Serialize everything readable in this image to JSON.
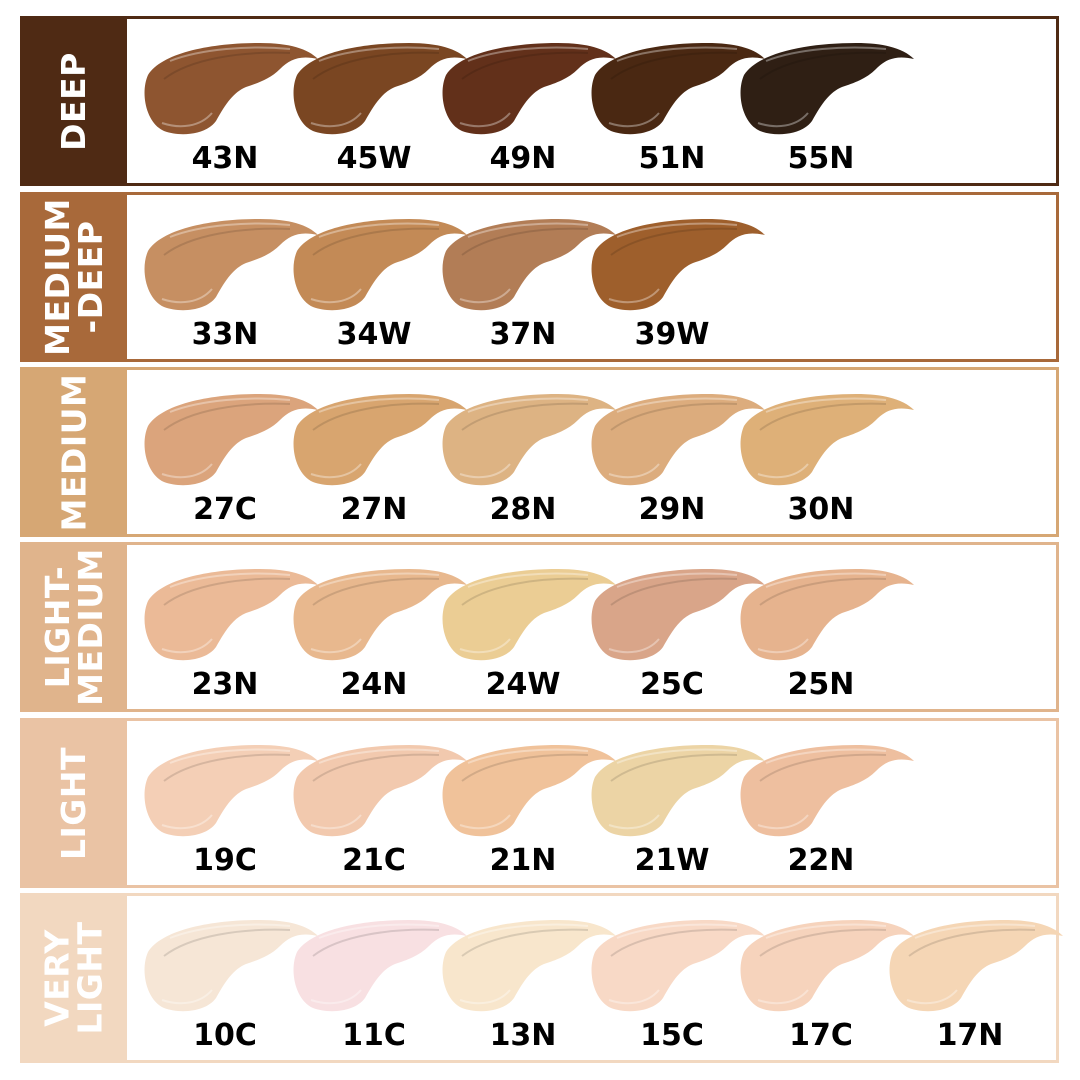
{
  "groups": [
    {
      "name": "DEEP",
      "color": "#4f2a14",
      "shades": [
        {
          "code": "43N",
          "color": "#8e5530"
        },
        {
          "code": "45W",
          "color": "#7a4622"
        },
        {
          "code": "49N",
          "color": "#62301a"
        },
        {
          "code": "51N",
          "color": "#4a2812"
        },
        {
          "code": "55N",
          "color": "#2f1f14"
        }
      ]
    },
    {
      "name": "MEDIUM\n-DEEP",
      "color": "#a8693a",
      "shades": [
        {
          "code": "33N",
          "color": "#c68f62"
        },
        {
          "code": "34W",
          "color": "#c38a56"
        },
        {
          "code": "37N",
          "color": "#b27d56"
        },
        {
          "code": "39W",
          "color": "#9e5f2c"
        }
      ]
    },
    {
      "name": "MEDIUM",
      "color": "#d6a774",
      "shades": [
        {
          "code": "27C",
          "color": "#dba47c"
        },
        {
          "code": "27N",
          "color": "#d8a56f"
        },
        {
          "code": "28N",
          "color": "#ddb383"
        },
        {
          "code": "29N",
          "color": "#dcac7d"
        },
        {
          "code": "30N",
          "color": "#deb078"
        }
      ]
    },
    {
      "name": "LIGHT-\nMEDIUM",
      "color": "#e0b48c",
      "shades": [
        {
          "code": "23N",
          "color": "#ebba97"
        },
        {
          "code": "24N",
          "color": "#e8b88e"
        },
        {
          "code": "24W",
          "color": "#ebcd94"
        },
        {
          "code": "25C",
          "color": "#d9a589"
        },
        {
          "code": "25N",
          "color": "#e6b38e"
        }
      ]
    },
    {
      "name": "LIGHT",
      "color": "#eac3a4",
      "shades": [
        {
          "code": "19C",
          "color": "#f4cfb6"
        },
        {
          "code": "21C",
          "color": "#f2c9ae"
        },
        {
          "code": "21N",
          "color": "#f0c29a"
        },
        {
          "code": "21W",
          "color": "#ecd4a5"
        },
        {
          "code": "22N",
          "color": "#eebf9f"
        }
      ]
    },
    {
      "name": "VERY\nLIGHT",
      "color": "#f2d8c0",
      "shades": [
        {
          "code": "10C",
          "color": "#f6e6d6"
        },
        {
          "code": "11C",
          "color": "#f8e0e2"
        },
        {
          "code": "13N",
          "color": "#f8e6cc"
        },
        {
          "code": "15C",
          "color": "#f8d9c6"
        },
        {
          "code": "17C",
          "color": "#f6d3bc"
        },
        {
          "code": "17N",
          "color": "#f5d6b5"
        }
      ]
    }
  ]
}
